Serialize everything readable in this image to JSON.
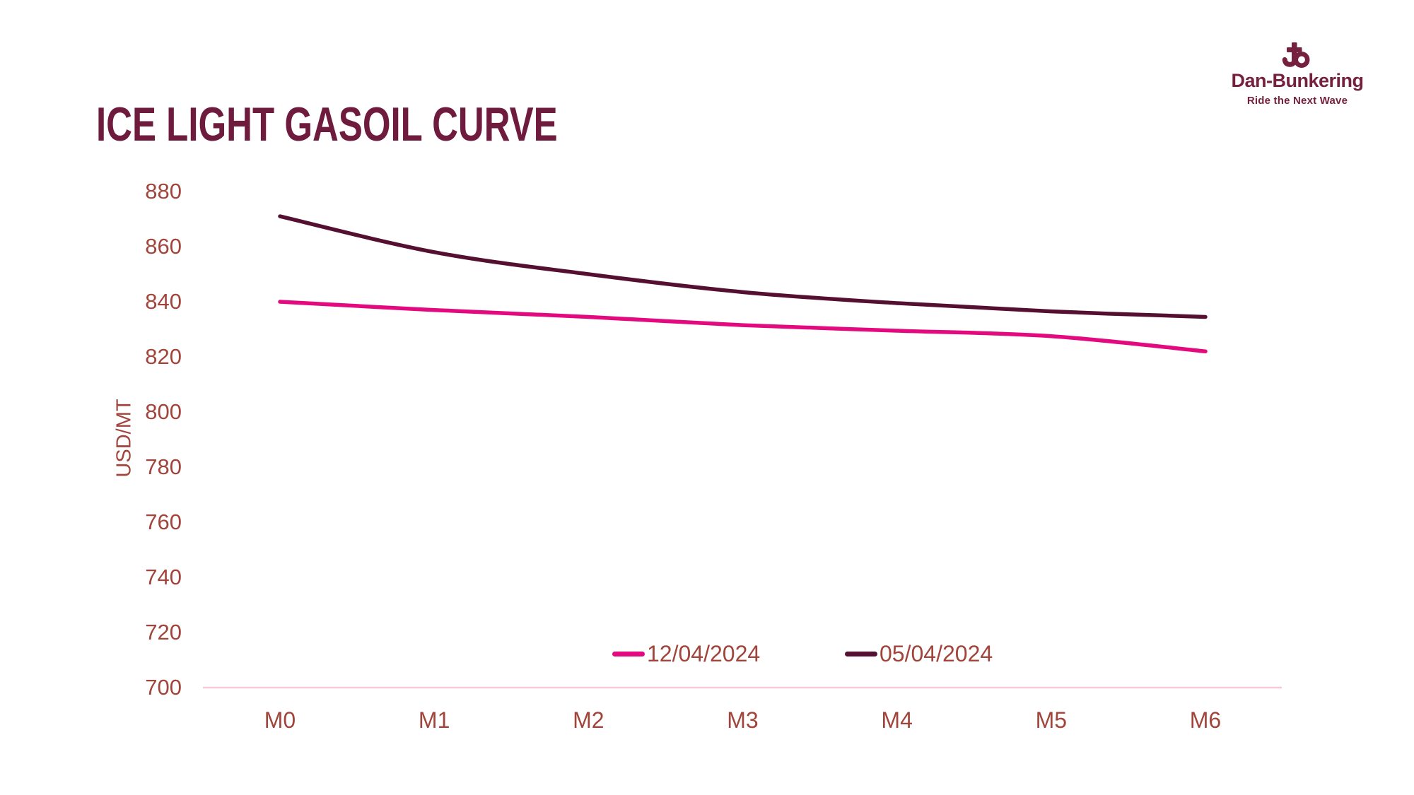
{
  "page": {
    "background": "#ffffff"
  },
  "header": {
    "title": "ICE LIGHT GASOIL CURVE",
    "title_color": "#6e1b3e"
  },
  "logo": {
    "brand": "Dan-Bunkering",
    "tagline": "Ride the Next Wave",
    "color": "#76203f",
    "icon": "anchor-b-mark"
  },
  "chart_data": {
    "type": "line",
    "title": "ICE LIGHT GASOIL CURVE",
    "xlabel": "",
    "ylabel": "USD/MT",
    "categories": [
      "M0",
      "M1",
      "M2",
      "M3",
      "M4",
      "M5",
      "M6"
    ],
    "series": [
      {
        "name": "12/04/2024",
        "color": "#e3097e",
        "values": [
          840,
          837,
          834.5,
          831.5,
          829.5,
          827.5,
          822
        ]
      },
      {
        "name": "05/04/2024",
        "color": "#551031",
        "values": [
          871,
          858,
          850,
          843.5,
          839.5,
          836.5,
          834.5
        ]
      }
    ],
    "ylim": [
      700,
      880
    ],
    "yticks": [
      700,
      720,
      740,
      760,
      780,
      800,
      820,
      840,
      860,
      880
    ],
    "grid": false,
    "legend_position": "bottom-center-inside",
    "tick_label_color": "#a1453c",
    "baseline_color": "#f7c9db"
  }
}
